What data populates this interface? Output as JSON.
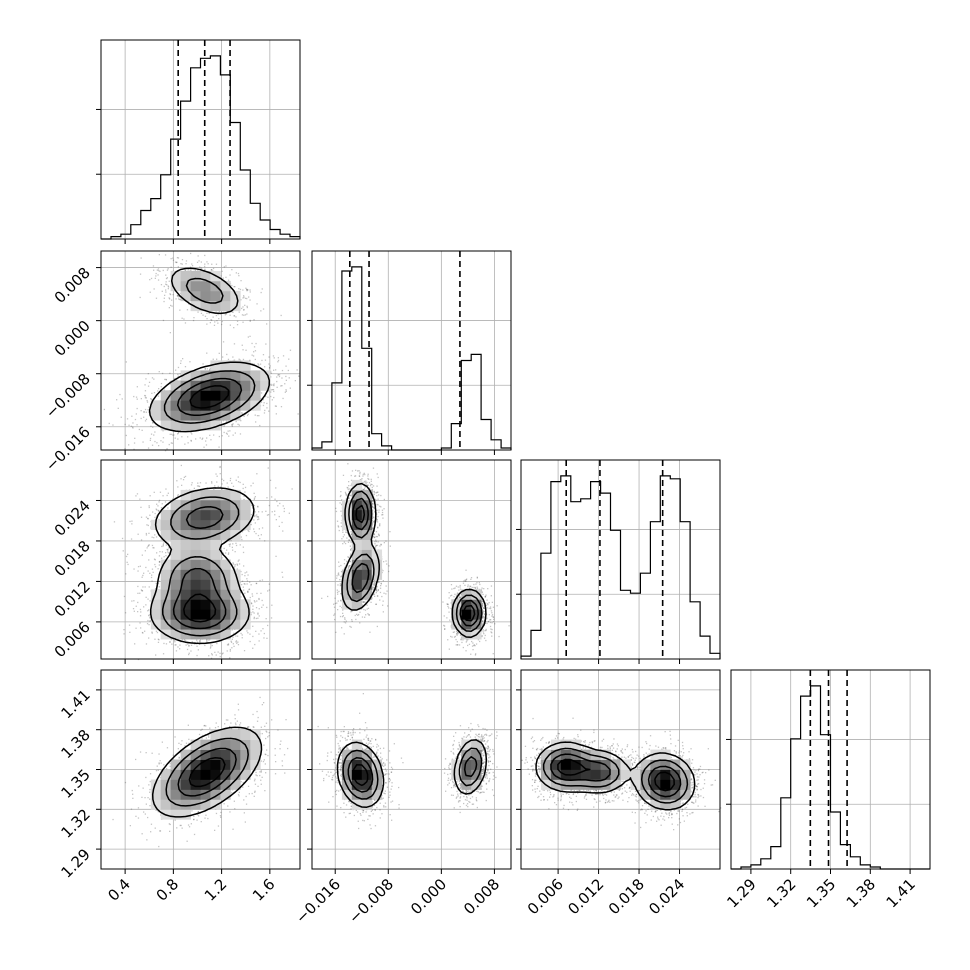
{
  "chart_data": {
    "type": "corner",
    "title": "",
    "params": [
      {
        "range": [
          0.2,
          1.85
        ],
        "ticks": [
          0.4,
          0.8,
          1.2,
          1.6
        ],
        "tick_labels": [
          "0.4",
          "0.8",
          "1.2",
          "1.6"
        ],
        "quantiles": [
          0.84,
          1.06,
          1.27
        ],
        "hist_start": 0.2,
        "hist_step": 0.0825,
        "hist_counts": [
          0,
          1,
          2,
          6,
          12,
          17,
          27,
          42,
          58,
          72,
          76,
          77,
          69,
          49,
          29,
          15,
          8,
          4,
          2,
          1
        ]
      },
      {
        "range": [
          -0.0195,
          0.0105
        ],
        "ticks": [
          -0.016,
          -0.008,
          0.0,
          0.008
        ],
        "tick_labels": [
          "−0.016",
          "−0.008",
          "0.000",
          "0.008"
        ],
        "quantiles": [
          -0.0138,
          -0.0109,
          0.0028
        ],
        "hist_start": -0.0195,
        "hist_step": 0.0015,
        "hist_counts": [
          1,
          4,
          33,
          88,
          90,
          50,
          8,
          2,
          0,
          0,
          0,
          0,
          0,
          1,
          13,
          44,
          47,
          15,
          5,
          1
        ]
      },
      {
        "range": [
          0.0005,
          0.03
        ],
        "ticks": [
          0.006,
          0.012,
          0.018,
          0.024
        ],
        "tick_labels": [
          "0.006",
          "0.012",
          "0.018",
          "0.024"
        ],
        "quantiles": [
          0.0072,
          0.0122,
          0.0215
        ],
        "hist_start": 0.0005,
        "hist_step": 0.001475,
        "hist_counts": [
          1,
          10,
          37,
          62,
          64,
          55,
          56,
          62,
          58,
          45,
          24,
          23,
          30,
          48,
          64,
          63,
          48,
          20,
          8,
          2
        ]
      },
      {
        "range": [
          1.275,
          1.425
        ],
        "ticks": [
          1.29,
          1.32,
          1.35,
          1.38,
          1.41
        ],
        "tick_labels": [
          "1.29",
          "1.32",
          "1.35",
          "1.38",
          "1.41"
        ],
        "quantiles": [
          1.3348,
          1.3485,
          1.3625
        ],
        "hist_start": 1.275,
        "hist_step": 0.0075,
        "hist_counts": [
          0,
          1,
          2,
          5,
          11,
          35,
          64,
          85,
          90,
          66,
          28,
          12,
          6,
          2,
          1,
          0,
          0,
          0,
          0,
          0
        ]
      }
    ],
    "pairs": [
      {
        "row": 1,
        "col": 0,
        "blobs": [
          {
            "cx": 1.06,
            "cy": 0.0045,
            "sx": 0.18,
            "sy": 0.0017,
            "rot": -25,
            "w": 0.45
          },
          {
            "cx": 1.1,
            "cy": -0.0115,
            "sx": 0.25,
            "sy": 0.0022,
            "rot": 18,
            "w": 1.0
          }
        ]
      },
      {
        "row": 2,
        "col": 0,
        "blobs": [
          {
            "cx": 1.06,
            "cy": 0.0215,
            "sx": 0.22,
            "sy": 0.0022,
            "rot": 12,
            "w": 0.6
          },
          {
            "cx": 1.02,
            "cy": 0.0073,
            "sx": 0.2,
            "sy": 0.0022,
            "rot": 0,
            "w": 0.8
          },
          {
            "cx": 1.0,
            "cy": 0.0125,
            "sx": 0.17,
            "sy": 0.0024,
            "rot": 0,
            "w": 0.55
          }
        ]
      },
      {
        "row": 2,
        "col": 1,
        "blobs": [
          {
            "cx": -0.0122,
            "cy": 0.022,
            "sx": 0.0011,
            "sy": 0.0022,
            "rot": 0,
            "w": 0.65
          },
          {
            "cx": -0.0122,
            "cy": 0.0125,
            "sx": 0.0013,
            "sy": 0.0025,
            "rot": -15,
            "w": 0.55
          },
          {
            "cx": 0.0042,
            "cy": 0.0073,
            "sx": 0.0012,
            "sy": 0.0017,
            "rot": 0,
            "w": 0.7
          }
        ]
      },
      {
        "row": 3,
        "col": 0,
        "blobs": [
          {
            "cx": 1.08,
            "cy": 1.348,
            "sx": 0.25,
            "sy": 0.012,
            "rot": 35,
            "w": 1.0
          }
        ]
      },
      {
        "row": 3,
        "col": 1,
        "blobs": [
          {
            "cx": -0.0122,
            "cy": 1.346,
            "sx": 0.0016,
            "sy": 0.012,
            "rot": 15,
            "w": 0.85
          },
          {
            "cx": 0.0044,
            "cy": 1.352,
            "sx": 0.0012,
            "sy": 0.011,
            "rot": -12,
            "w": 0.6
          }
        ]
      },
      {
        "row": 3,
        "col": 2,
        "blobs": [
          {
            "cx": 0.0072,
            "cy": 1.352,
            "sx": 0.0022,
            "sy": 0.009,
            "rot": 0,
            "w": 0.8
          },
          {
            "cx": 0.0122,
            "cy": 1.348,
            "sx": 0.0021,
            "sy": 0.008,
            "rot": 0,
            "w": 0.6
          },
          {
            "cx": 0.0218,
            "cy": 1.341,
            "sx": 0.0022,
            "sy": 0.01,
            "rot": -30,
            "w": 0.85
          }
        ]
      }
    ]
  }
}
